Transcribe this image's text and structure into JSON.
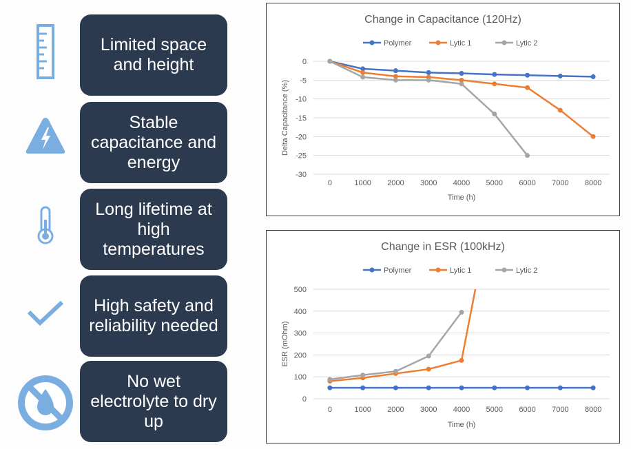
{
  "features": [
    {
      "icon": "ruler-icon",
      "text": "Limited space and height"
    },
    {
      "icon": "warning-triangle-bolt-icon",
      "text": "Stable capacitance and energy"
    },
    {
      "icon": "thermometer-icon",
      "text": "Long lifetime at high temperatures"
    },
    {
      "icon": "checkmark-icon",
      "text": "High safety and reliability needed"
    },
    {
      "icon": "no-liquid-drop-icon",
      "text": "No wet electrolyte to dry up"
    }
  ],
  "colors": {
    "feature_box": "#2b3a4f",
    "icon_blue": "#7aaee0",
    "polymer": "#4472c4",
    "lytic1": "#ed7d31",
    "lytic2": "#a5a5a5"
  },
  "chart_data": [
    {
      "type": "line",
      "title": "Change in Capacitance (120Hz)",
      "xlabel": "Time (h)",
      "ylabel": "Delta Capacitance (%)",
      "categories": [
        "0",
        "1000",
        "2000",
        "3000",
        "4000",
        "5000",
        "6000",
        "7000",
        "8000"
      ],
      "ylim": [
        -30,
        0
      ],
      "yticks": [
        0,
        -5,
        -10,
        -15,
        -20,
        -25,
        -30
      ],
      "legend": "top-center",
      "grid": true,
      "series": [
        {
          "name": "Polymer",
          "color": "#4472c4",
          "values": [
            0,
            -2,
            -2.5,
            -3,
            -3.2,
            -3.5,
            -3.7,
            -3.9,
            -4.1
          ]
        },
        {
          "name": "Lytic 1",
          "color": "#ed7d31",
          "values": [
            0,
            -3,
            -4,
            -4.2,
            -5,
            -6,
            -7,
            -13,
            -20
          ]
        },
        {
          "name": "Lytic 2",
          "color": "#a5a5a5",
          "values": [
            0,
            -4.2,
            -5,
            -5,
            -6,
            -14,
            -25,
            null,
            null
          ]
        }
      ]
    },
    {
      "type": "line",
      "title": "Change in ESR (100kHz)",
      "xlabel": "Time (h)",
      "ylabel": "ESR (mOhm)",
      "categories": [
        "0",
        "1000",
        "2000",
        "3000",
        "4000",
        "5000",
        "6000",
        "7000",
        "8000"
      ],
      "ylim": [
        0,
        500
      ],
      "yticks": [
        0,
        100,
        200,
        300,
        400,
        500
      ],
      "legend": "top-center",
      "grid": true,
      "series": [
        {
          "name": "Polymer",
          "color": "#4472c4",
          "values": [
            50,
            50,
            50,
            50,
            50,
            50,
            50,
            50,
            50
          ]
        },
        {
          "name": "Lytic 1",
          "color": "#ed7d31",
          "values": [
            80,
            95,
            115,
            135,
            175,
            null,
            null,
            null,
            null
          ],
          "extends_to": [
            4420,
            500
          ]
        },
        {
          "name": "Lytic 2",
          "color": "#a5a5a5",
          "values": [
            88,
            108,
            125,
            195,
            395,
            null,
            null,
            null,
            null
          ]
        }
      ]
    }
  ]
}
